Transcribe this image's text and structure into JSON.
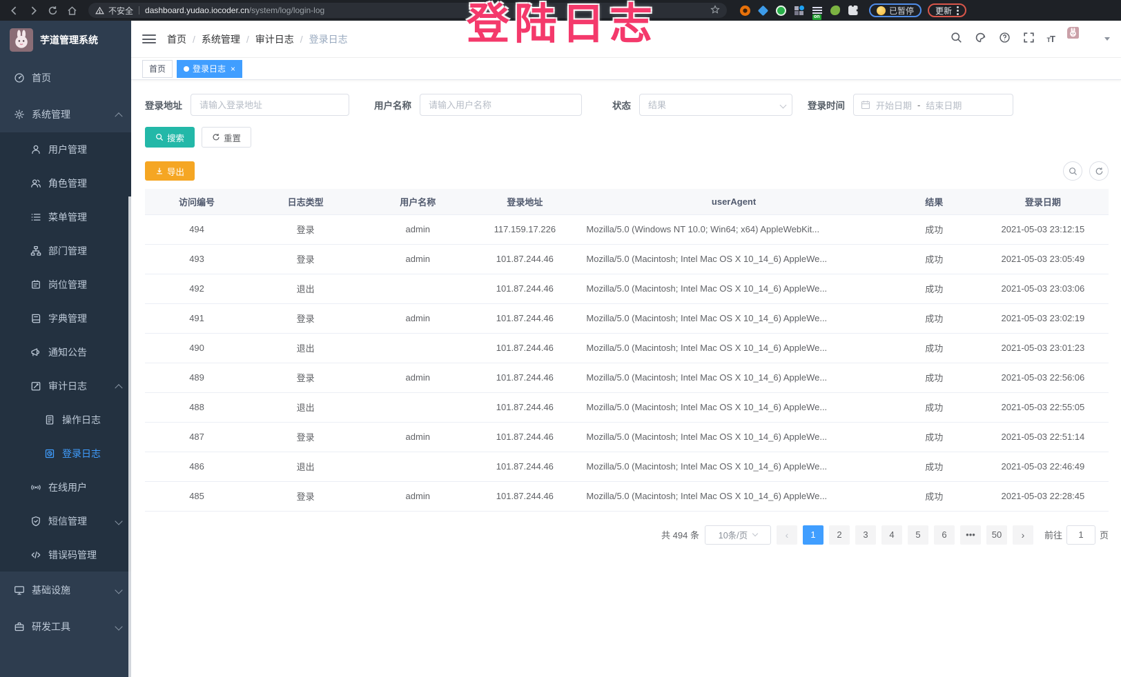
{
  "browser": {
    "security_label": "不安全",
    "url_host": "dashboard.yudao.iocoder.cn",
    "url_path": "/system/log/login-log",
    "paused_badge": "已暂停",
    "update_badge": "更新"
  },
  "sidebar": {
    "app_title": "芋道管理系统",
    "menu": [
      {
        "name": "home",
        "label": "首页",
        "icon": "dashboard-icon",
        "level": 1
      },
      {
        "name": "system-mgmt",
        "label": "系统管理",
        "icon": "gear-icon",
        "level": 1,
        "arrow": "up"
      },
      {
        "name": "user-mgmt",
        "label": "用户管理",
        "icon": "user-icon",
        "level": 2
      },
      {
        "name": "role-mgmt",
        "label": "角色管理",
        "icon": "users-icon",
        "level": 2
      },
      {
        "name": "menu-mgmt",
        "label": "菜单管理",
        "icon": "list-icon",
        "level": 2
      },
      {
        "name": "dept-mgmt",
        "label": "部门管理",
        "icon": "tree-icon",
        "level": 2
      },
      {
        "name": "post-mgmt",
        "label": "岗位管理",
        "icon": "badge-icon",
        "level": 2
      },
      {
        "name": "dict-mgmt",
        "label": "字典管理",
        "icon": "book-icon",
        "level": 2
      },
      {
        "name": "notice-mgmt",
        "label": "通知公告",
        "icon": "megaphone-icon",
        "level": 2
      },
      {
        "name": "audit-log",
        "label": "审计日志",
        "icon": "edit-icon",
        "level": 2,
        "arrow": "up"
      },
      {
        "name": "operation-log",
        "label": "操作日志",
        "icon": "doc-icon",
        "level": 3
      },
      {
        "name": "login-log",
        "label": "登录日志",
        "icon": "login-log-icon",
        "level": 3,
        "active": true
      },
      {
        "name": "online-users",
        "label": "在线用户",
        "icon": "online-icon",
        "level": 2
      },
      {
        "name": "sms-mgmt",
        "label": "短信管理",
        "icon": "shield-icon",
        "level": 2,
        "arrow": "down"
      },
      {
        "name": "error-code-mgmt",
        "label": "错误码管理",
        "icon": "code-icon",
        "level": 2
      },
      {
        "name": "infrastructure",
        "label": "基础设施",
        "icon": "monitor-icon",
        "level": 1,
        "arrow": "down"
      },
      {
        "name": "dev-tools",
        "label": "研发工具",
        "icon": "briefcase-icon",
        "level": 1,
        "arrow": "down"
      }
    ]
  },
  "header": {
    "breadcrumb": [
      "首页",
      "系统管理",
      "审计日志",
      "登录日志"
    ]
  },
  "tags": [
    {
      "name": "tag-home",
      "label": "首页",
      "active": false
    },
    {
      "name": "tag-login-log",
      "label": "登录日志",
      "active": true
    }
  ],
  "filters": {
    "login_address_label": "登录地址",
    "login_address_placeholder": "请输入登录地址",
    "username_label": "用户名称",
    "username_placeholder": "请输入用户名称",
    "status_label": "状态",
    "status_placeholder": "结果",
    "login_time_label": "登录时间",
    "start_date_placeholder": "开始日期",
    "date_separator": "-",
    "end_date_placeholder": "结束日期",
    "search_label": "搜索",
    "reset_label": "重置",
    "export_label": "导出"
  },
  "table": {
    "headers": [
      "访问编号",
      "日志类型",
      "用户名称",
      "登录地址",
      "userAgent",
      "结果",
      "登录日期"
    ],
    "col_names": [
      "access-id",
      "log-type",
      "username",
      "login-ip",
      "user-agent",
      "result",
      "login-date"
    ],
    "rows": [
      [
        "494",
        "登录",
        "admin",
        "117.159.17.226",
        "Mozilla/5.0 (Windows NT 10.0; Win64; x64) AppleWebKit...",
        "成功",
        "2021-05-03 23:12:15"
      ],
      [
        "493",
        "登录",
        "admin",
        "101.87.244.46",
        "Mozilla/5.0 (Macintosh; Intel Mac OS X 10_14_6) AppleWe...",
        "成功",
        "2021-05-03 23:05:49"
      ],
      [
        "492",
        "退出",
        "",
        "101.87.244.46",
        "Mozilla/5.0 (Macintosh; Intel Mac OS X 10_14_6) AppleWe...",
        "成功",
        "2021-05-03 23:03:06"
      ],
      [
        "491",
        "登录",
        "admin",
        "101.87.244.46",
        "Mozilla/5.0 (Macintosh; Intel Mac OS X 10_14_6) AppleWe...",
        "成功",
        "2021-05-03 23:02:19"
      ],
      [
        "490",
        "退出",
        "",
        "101.87.244.46",
        "Mozilla/5.0 (Macintosh; Intel Mac OS X 10_14_6) AppleWe...",
        "成功",
        "2021-05-03 23:01:23"
      ],
      [
        "489",
        "登录",
        "admin",
        "101.87.244.46",
        "Mozilla/5.0 (Macintosh; Intel Mac OS X 10_14_6) AppleWe...",
        "成功",
        "2021-05-03 22:56:06"
      ],
      [
        "488",
        "退出",
        "",
        "101.87.244.46",
        "Mozilla/5.0 (Macintosh; Intel Mac OS X 10_14_6) AppleWe...",
        "成功",
        "2021-05-03 22:55:05"
      ],
      [
        "487",
        "登录",
        "admin",
        "101.87.244.46",
        "Mozilla/5.0 (Macintosh; Intel Mac OS X 10_14_6) AppleWe...",
        "成功",
        "2021-05-03 22:51:14"
      ],
      [
        "486",
        "退出",
        "",
        "101.87.244.46",
        "Mozilla/5.0 (Macintosh; Intel Mac OS X 10_14_6) AppleWe...",
        "成功",
        "2021-05-03 22:46:49"
      ],
      [
        "485",
        "登录",
        "admin",
        "101.87.244.46",
        "Mozilla/5.0 (Macintosh; Intel Mac OS X 10_14_6) AppleWe...",
        "成功",
        "2021-05-03 22:28:45"
      ]
    ]
  },
  "pagination": {
    "total_text": "共 494 条",
    "page_size": "10条/页",
    "pages": [
      "1",
      "2",
      "3",
      "4",
      "5",
      "6",
      "•••",
      "50"
    ],
    "active_page": "1",
    "prev": "‹",
    "next": "›",
    "goto_label": "前往",
    "goto_value": "1",
    "page_unit": "页"
  },
  "watermark": "登陆日志",
  "colors": {
    "accent_blue": "#409eff",
    "sidebar_bg": "#2e3d4f",
    "submenu_bg": "#233140",
    "search_btn": "#23b8a8",
    "export_btn": "#f5a623",
    "watermark_pink": "#f4396b"
  }
}
